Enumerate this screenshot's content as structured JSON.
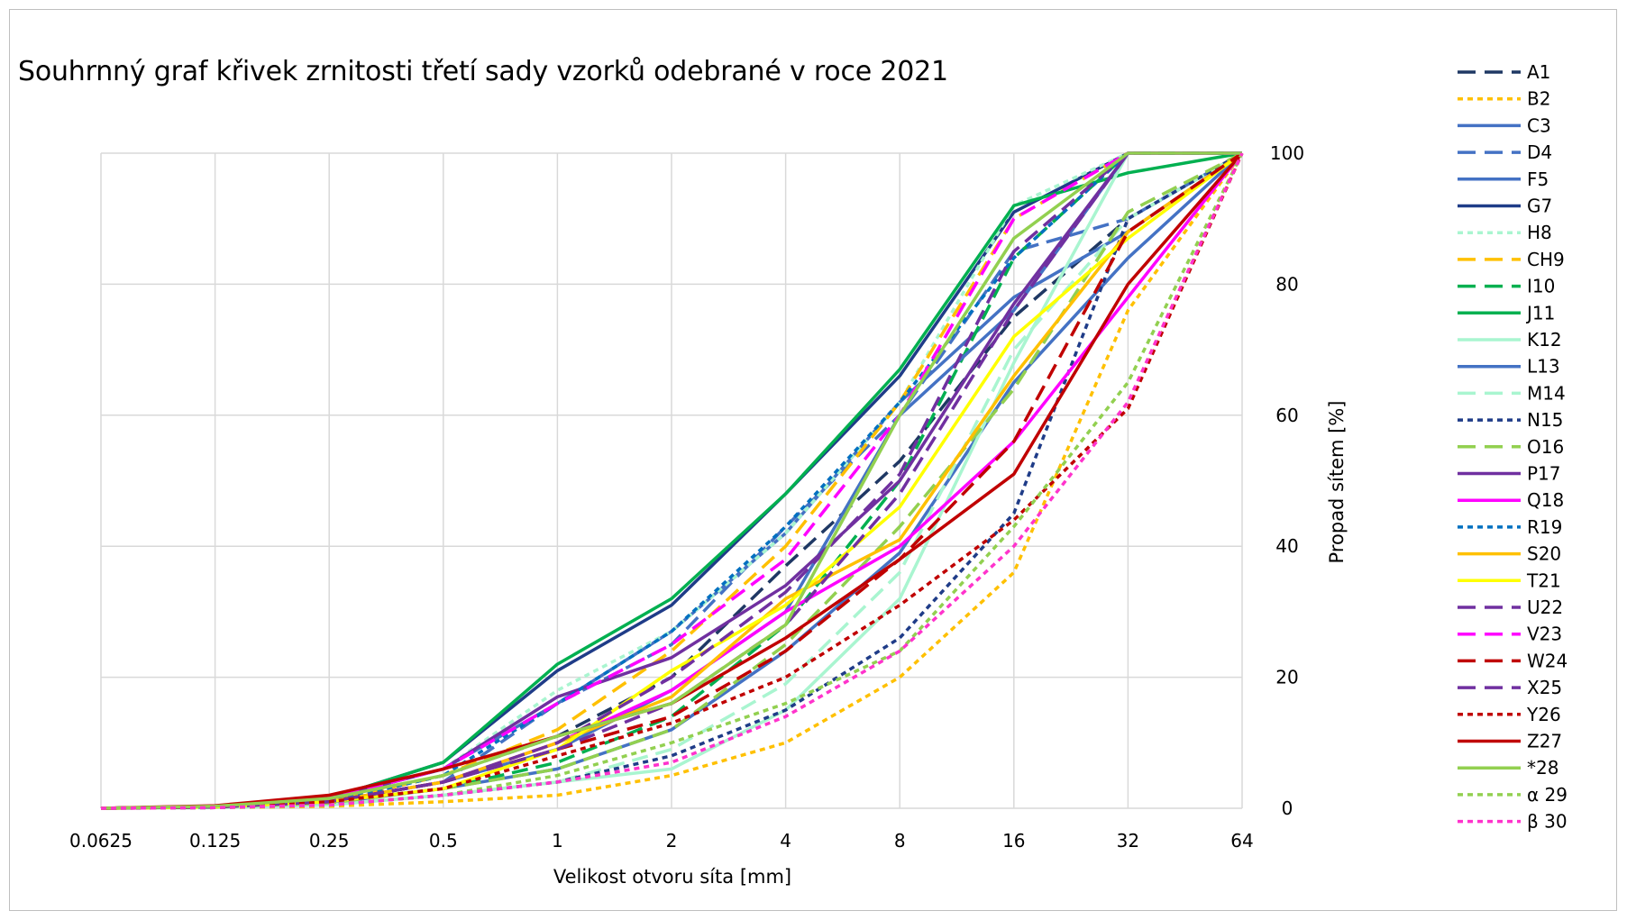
{
  "chart_data": {
    "type": "line",
    "title": "Souhrnný graf křivek zrnitosti třetí sady vzorků odebrané v roce 2021",
    "xlabel": "Velikost otvoru síta [mm]",
    "ylabel": "Propad sítem [%]",
    "x_scale": "log2",
    "x": [
      0.0625,
      0.125,
      0.25,
      0.5,
      1,
      2,
      4,
      8,
      16,
      32,
      64
    ],
    "x_tick_labels": [
      "0.0625",
      "0.125",
      "0.25",
      "0.5",
      "1",
      "2",
      "4",
      "8",
      "16",
      "32",
      "64"
    ],
    "ylim": [
      0,
      100
    ],
    "y_ticks": [
      0,
      20,
      40,
      60,
      80,
      100
    ],
    "y_axis_side": "right",
    "grid": true,
    "legend_position": "right",
    "series": [
      {
        "name": "A1",
        "color": "#1f3864",
        "dash": "dashed",
        "values": [
          0,
          0.2,
          1,
          5,
          11,
          20,
          37,
          53,
          75,
          90,
          100
        ]
      },
      {
        "name": "B2",
        "color": "#ffc000",
        "dash": "dotted",
        "values": [
          0,
          0.1,
          0.3,
          1,
          2,
          5,
          10,
          20,
          36,
          76,
          100
        ]
      },
      {
        "name": "C3",
        "color": "#4472c4",
        "dash": "solid",
        "values": [
          0,
          0.2,
          0.8,
          3,
          6,
          12,
          24,
          39,
          65,
          84,
          100
        ]
      },
      {
        "name": "D4",
        "color": "#4472c4",
        "dash": "dashed",
        "values": [
          0,
          0.2,
          1,
          4,
          16,
          25,
          43,
          60,
          85,
          90,
          100
        ]
      },
      {
        "name": "F5",
        "color": "#4472c4",
        "dash": "solid",
        "values": [
          0,
          0.3,
          1.5,
          6,
          16,
          27,
          42,
          62,
          78,
          88,
          100
        ]
      },
      {
        "name": "G7",
        "color": "#1f3c88",
        "dash": "solid",
        "values": [
          0,
          0.3,
          1.5,
          7,
          21,
          31,
          48,
          66,
          91,
          100,
          100
        ]
      },
      {
        "name": "H8",
        "color": "#a9f5d0",
        "dash": "dotted",
        "values": [
          0,
          0.3,
          1.5,
          6,
          18,
          27,
          42,
          62,
          92,
          100,
          100
        ]
      },
      {
        "name": "CH9",
        "color": "#ffc000",
        "dash": "dashed",
        "values": [
          0,
          0.2,
          1,
          5,
          12,
          24,
          40,
          62,
          90,
          100,
          100
        ]
      },
      {
        "name": "I10",
        "color": "#00b050",
        "dash": "dashed",
        "values": [
          0,
          0.2,
          1,
          3,
          7,
          14,
          28,
          50,
          84,
          100,
          100
        ]
      },
      {
        "name": "J11",
        "color": "#00b050",
        "dash": "solid",
        "values": [
          0,
          0.3,
          1.5,
          7,
          22,
          32,
          48,
          67,
          92,
          97,
          100
        ]
      },
      {
        "name": "K12",
        "color": "#a9f5d0",
        "dash": "solid",
        "values": [
          0,
          0.1,
          0.5,
          2,
          4,
          6,
          15,
          32,
          68,
          100,
          100
        ]
      },
      {
        "name": "L13",
        "color": "#4472c4",
        "dash": "solid",
        "values": [
          0,
          0.2,
          1,
          4,
          9,
          18,
          30,
          60,
          76,
          100,
          100
        ]
      },
      {
        "name": "M14",
        "color": "#a9f5d0",
        "dash": "dashed",
        "values": [
          0,
          0.1,
          0.6,
          2,
          4,
          9,
          19,
          36,
          70,
          90,
          100
        ]
      },
      {
        "name": "N15",
        "color": "#1f3c88",
        "dash": "dotted",
        "values": [
          0,
          0.1,
          0.5,
          2,
          4,
          8,
          15,
          26,
          45,
          90,
          100
        ]
      },
      {
        "name": "O16",
        "color": "#92d050",
        "dash": "dashed",
        "values": [
          0,
          0.2,
          0.8,
          3,
          6,
          12,
          25,
          43,
          64,
          91,
          100
        ]
      },
      {
        "name": "P17",
        "color": "#7030a0",
        "dash": "solid",
        "values": [
          0,
          0.3,
          1.5,
          6,
          17,
          23,
          34,
          50,
          77,
          100,
          100
        ]
      },
      {
        "name": "Q18",
        "color": "#ff00ff",
        "dash": "solid",
        "values": [
          0,
          0.2,
          1,
          4,
          10,
          18,
          30,
          40,
          56,
          78,
          100
        ]
      },
      {
        "name": "R19",
        "color": "#0070c0",
        "dash": "dotted",
        "values": [
          0,
          0.2,
          1,
          5,
          16,
          27,
          43,
          62,
          84,
          100,
          100
        ]
      },
      {
        "name": "S20",
        "color": "#ffc000",
        "dash": "solid",
        "values": [
          0,
          0.2,
          1,
          4,
          10,
          17,
          32,
          41,
          66,
          88,
          100
        ]
      },
      {
        "name": "T21",
        "color": "#ffff00",
        "dash": "solid",
        "values": [
          0,
          0.2,
          1,
          3,
          9,
          21,
          31,
          46,
          72,
          87,
          100
        ]
      },
      {
        "name": "U22",
        "color": "#7030a0",
        "dash": "dashed",
        "values": [
          0,
          0.2,
          1,
          4,
          10,
          20,
          33,
          51,
          85,
          100,
          100
        ]
      },
      {
        "name": "V23",
        "color": "#ff00ff",
        "dash": "dashed",
        "values": [
          0,
          0.3,
          1.5,
          6,
          16,
          25,
          38,
          60,
          90,
          100,
          100
        ]
      },
      {
        "name": "W24",
        "color": "#c00000",
        "dash": "dashed",
        "values": [
          0,
          0.2,
          1,
          4,
          9,
          14,
          24,
          38,
          56,
          88,
          100
        ]
      },
      {
        "name": "X25",
        "color": "#7030a0",
        "dash": "dashed",
        "values": [
          0,
          0.2,
          1,
          4,
          9,
          16,
          28,
          48,
          76,
          100,
          100
        ]
      },
      {
        "name": "Y26",
        "color": "#c00000",
        "dash": "dotted",
        "values": [
          0,
          0.2,
          1,
          3,
          8,
          13,
          20,
          31,
          44,
          61,
          100
        ]
      },
      {
        "name": "Z27",
        "color": "#c00000",
        "dash": "solid",
        "values": [
          0,
          0.4,
          2,
          6,
          11,
          16,
          26,
          38,
          51,
          80,
          100
        ]
      },
      {
        "name": "*28",
        "color": "#92d050",
        "dash": "solid",
        "values": [
          0,
          0.3,
          1.5,
          5,
          11,
          16,
          28,
          60,
          87,
          100,
          100
        ]
      },
      {
        "name": "α 29",
        "color": "#92d050",
        "dash": "dotted",
        "values": [
          0,
          0.1,
          0.5,
          2,
          5,
          10,
          16,
          24,
          43,
          65,
          100
        ]
      },
      {
        "name": "β 30",
        "color": "#ff33cc",
        "dash": "dotted",
        "values": [
          0,
          0.1,
          0.5,
          2,
          4,
          7,
          14,
          24,
          40,
          62,
          100
        ]
      }
    ]
  }
}
